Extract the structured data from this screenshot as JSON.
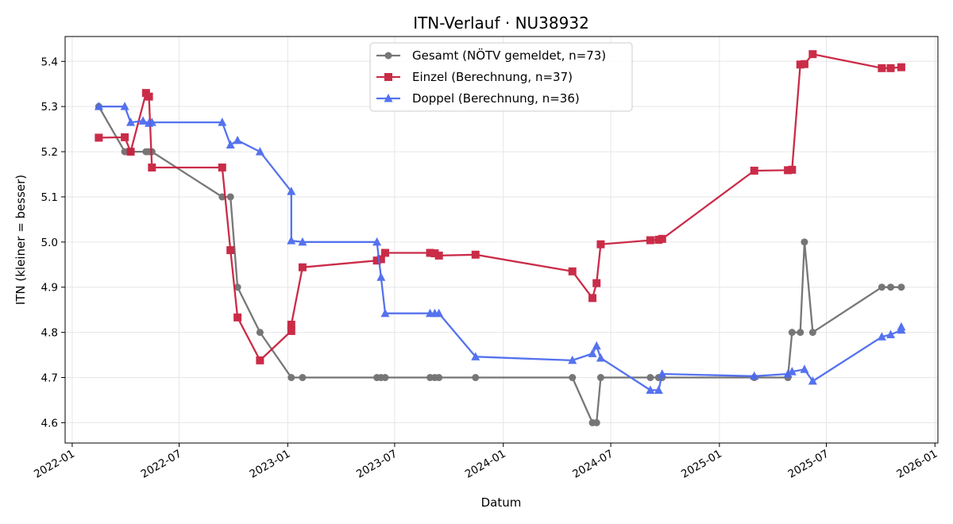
{
  "chart_data": {
    "type": "line",
    "title": "ITN-Verlauf · NU38932",
    "xlabel": "Datum",
    "ylabel": "ITN  (kleiner = besser)",
    "x_axis_type": "date",
    "xlim": [
      "2021-12-20",
      "2026-01-06"
    ],
    "ylim": [
      4.555,
      5.455
    ],
    "x_ticks": [
      "2022-01-01",
      "2022-07-01",
      "2023-01-01",
      "2023-07-01",
      "2024-01-01",
      "2024-07-01",
      "2025-01-01",
      "2025-07-01",
      "2026-01-01"
    ],
    "x_tick_labels": [
      "2022-01",
      "2022-07",
      "2023-01",
      "2023-07",
      "2024-01",
      "2024-07",
      "2025-01",
      "2025-07",
      "2026-01"
    ],
    "y_ticks": [
      4.6,
      4.7,
      4.8,
      4.9,
      5.0,
      5.1,
      5.2,
      5.3,
      5.4
    ],
    "y_tick_labels": [
      "4.6",
      "4.7",
      "4.8",
      "4.9",
      "5.0",
      "5.1",
      "5.2",
      "5.3",
      "5.4"
    ],
    "grid": true,
    "legend_position": "top-center",
    "series": [
      {
        "name": "Gesamt (NÖTV gemeldet, n=73)",
        "color": "#4a4a4a",
        "marker": "circle",
        "points": [
          [
            "2022-02-15",
            5.3
          ],
          [
            "2022-03-31",
            5.2
          ],
          [
            "2022-04-10",
            5.2
          ],
          [
            "2022-05-06",
            5.2
          ],
          [
            "2022-05-11",
            5.2
          ],
          [
            "2022-05-16",
            5.2
          ],
          [
            "2022-09-12",
            5.1
          ],
          [
            "2022-09-26",
            5.1
          ],
          [
            "2022-10-08",
            4.9
          ],
          [
            "2022-11-15",
            4.8
          ],
          [
            "2023-01-07",
            4.7
          ],
          [
            "2023-01-26",
            4.7
          ],
          [
            "2023-06-01",
            4.7
          ],
          [
            "2023-06-08",
            4.7
          ],
          [
            "2023-06-15",
            4.7
          ],
          [
            "2023-08-30",
            4.7
          ],
          [
            "2023-09-07",
            4.7
          ],
          [
            "2023-09-14",
            4.7
          ],
          [
            "2023-11-15",
            4.7
          ],
          [
            "2024-04-27",
            4.7
          ],
          [
            "2024-05-31",
            4.6
          ],
          [
            "2024-06-07",
            4.6
          ],
          [
            "2024-06-14",
            4.7
          ],
          [
            "2024-09-06",
            4.7
          ],
          [
            "2024-09-20",
            4.7
          ],
          [
            "2024-09-26",
            4.7
          ],
          [
            "2025-03-01",
            4.7
          ],
          [
            "2025-04-27",
            4.7
          ],
          [
            "2025-05-04",
            4.8
          ],
          [
            "2025-05-18",
            4.8
          ],
          [
            "2025-05-25",
            5.0
          ],
          [
            "2025-06-08",
            4.8
          ],
          [
            "2025-10-03",
            4.9
          ],
          [
            "2025-10-18",
            4.9
          ],
          [
            "2025-11-05",
            4.9
          ]
        ]
      },
      {
        "name": "Einzel (Berechnung, n=37)",
        "color": "#c8213f",
        "marker": "square",
        "points": [
          [
            "2022-02-15",
            5.231
          ],
          [
            "2022-03-31",
            5.232
          ],
          [
            "2022-04-10",
            5.2
          ],
          [
            "2022-05-06",
            5.33
          ],
          [
            "2022-05-11",
            5.322
          ],
          [
            "2022-05-16",
            5.165
          ],
          [
            "2022-09-12",
            5.165
          ],
          [
            "2022-09-26",
            4.982
          ],
          [
            "2022-10-08",
            4.833
          ],
          [
            "2022-11-15",
            4.738
          ],
          [
            "2023-01-07",
            4.803
          ],
          [
            "2023-01-07",
            4.817
          ],
          [
            "2023-01-26",
            4.944
          ],
          [
            "2023-06-01",
            4.959
          ],
          [
            "2023-06-08",
            4.962
          ],
          [
            "2023-06-15",
            4.976
          ],
          [
            "2023-08-30",
            4.976
          ],
          [
            "2023-09-07",
            4.975
          ],
          [
            "2023-09-14",
            4.97
          ],
          [
            "2023-11-15",
            4.972
          ],
          [
            "2024-04-27",
            4.935
          ],
          [
            "2024-05-31",
            4.876
          ],
          [
            "2024-06-07",
            4.909
          ],
          [
            "2024-06-14",
            4.995
          ],
          [
            "2024-09-06",
            5.004
          ],
          [
            "2024-09-20",
            5.005
          ],
          [
            "2024-09-26",
            5.007
          ],
          [
            "2025-03-01",
            5.158
          ],
          [
            "2025-04-27",
            5.159
          ],
          [
            "2025-05-04",
            5.16
          ],
          [
            "2025-05-18",
            5.393
          ],
          [
            "2025-05-25",
            5.394
          ],
          [
            "2025-06-08",
            5.416
          ],
          [
            "2025-10-03",
            5.385
          ],
          [
            "2025-10-18",
            5.385
          ],
          [
            "2025-11-05",
            5.387
          ]
        ]
      },
      {
        "name": "Doppel (Berechnung, n=36)",
        "color": "#4c6bef",
        "marker": "triangle",
        "points": [
          [
            "2022-02-15",
            5.3
          ],
          [
            "2022-03-31",
            5.3
          ],
          [
            "2022-04-10",
            5.265
          ],
          [
            "2022-05-01",
            5.268
          ],
          [
            "2022-05-11",
            5.263
          ],
          [
            "2022-05-16",
            5.265
          ],
          [
            "2022-09-12",
            5.265
          ],
          [
            "2022-09-26",
            5.215
          ],
          [
            "2022-10-08",
            5.225
          ],
          [
            "2022-11-15",
            5.2
          ],
          [
            "2023-01-07",
            5.112
          ],
          [
            "2023-01-07",
            5.003
          ],
          [
            "2023-01-26",
            5.0
          ],
          [
            "2023-06-01",
            5.0
          ],
          [
            "2023-06-08",
            4.922
          ],
          [
            "2023-06-15",
            4.842
          ],
          [
            "2023-08-30",
            4.842
          ],
          [
            "2023-09-07",
            4.842
          ],
          [
            "2023-09-14",
            4.842
          ],
          [
            "2023-11-15",
            4.746
          ],
          [
            "2024-04-27",
            4.738
          ],
          [
            "2024-05-31",
            4.753
          ],
          [
            "2024-06-07",
            4.77
          ],
          [
            "2024-06-14",
            4.743
          ],
          [
            "2024-09-06",
            4.672
          ],
          [
            "2024-09-20",
            4.672
          ],
          [
            "2024-09-26",
            4.708
          ],
          [
            "2025-03-01",
            4.703
          ],
          [
            "2025-04-27",
            4.708
          ],
          [
            "2025-05-04",
            4.713
          ],
          [
            "2025-05-25",
            4.718
          ],
          [
            "2025-06-08",
            4.692
          ],
          [
            "2025-10-03",
            4.79
          ],
          [
            "2025-10-18",
            4.795
          ],
          [
            "2025-11-05",
            4.805
          ],
          [
            "2025-11-05",
            4.812
          ]
        ]
      }
    ]
  }
}
